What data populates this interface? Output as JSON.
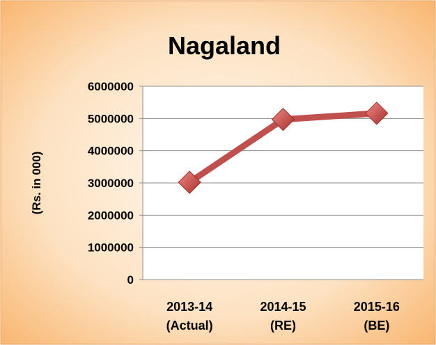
{
  "chart_data": {
    "type": "line",
    "title": "Nagaland",
    "y_label": "(Rs. in 000)",
    "categories": [
      "2013-14 (Actual)",
      "2014-15 (RE)",
      "2015-16 (BE)"
    ],
    "series": [
      {
        "name": "Nagaland",
        "color": "#c0504d",
        "values": [
          3020000,
          4970000,
          5160000
        ]
      }
    ],
    "ylim": [
      0,
      6000000
    ],
    "yticks": [
      0,
      1000000,
      2000000,
      3000000,
      4000000,
      5000000,
      6000000
    ],
    "grid": true
  }
}
